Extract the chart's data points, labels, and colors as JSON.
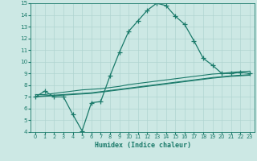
{
  "xlabel": "Humidex (Indice chaleur)",
  "x": [
    0,
    1,
    2,
    3,
    4,
    5,
    6,
    7,
    8,
    9,
    10,
    11,
    12,
    13,
    14,
    15,
    16,
    17,
    18,
    19,
    20,
    21,
    22,
    23
  ],
  "line_main": [
    7.0,
    7.5,
    7.0,
    7.0,
    5.5,
    4.1,
    6.5,
    6.6,
    8.8,
    10.8,
    12.6,
    13.5,
    14.4,
    15.0,
    14.8,
    13.9,
    13.2,
    11.8,
    10.3,
    9.7,
    9.0,
    9.0,
    9.1,
    9.0
  ],
  "line_avg1": [
    7.2,
    7.2,
    7.3,
    7.4,
    7.5,
    7.6,
    7.65,
    7.7,
    7.8,
    7.9,
    8.05,
    8.15,
    8.25,
    8.35,
    8.45,
    8.55,
    8.65,
    8.75,
    8.85,
    8.95,
    9.0,
    9.1,
    9.15,
    9.2
  ],
  "line_avg2": [
    7.05,
    7.1,
    7.15,
    7.2,
    7.25,
    7.3,
    7.35,
    7.45,
    7.55,
    7.65,
    7.75,
    7.85,
    7.95,
    8.05,
    8.15,
    8.25,
    8.35,
    8.45,
    8.55,
    8.65,
    8.72,
    8.8,
    8.85,
    8.9
  ],
  "line_avg3": [
    7.0,
    7.05,
    7.1,
    7.15,
    7.2,
    7.25,
    7.3,
    7.4,
    7.5,
    7.6,
    7.7,
    7.8,
    7.9,
    8.0,
    8.1,
    8.2,
    8.3,
    8.4,
    8.5,
    8.6,
    8.68,
    8.75,
    8.8,
    8.85
  ],
  "line_color": "#1a7a6a",
  "bg_color": "#cce8e4",
  "grid_color": "#b0d4d0",
  "ylim": [
    4,
    15
  ],
  "yticks": [
    4,
    5,
    6,
    7,
    8,
    9,
    10,
    11,
    12,
    13,
    14,
    15
  ],
  "xticks": [
    0,
    1,
    2,
    3,
    4,
    5,
    6,
    7,
    8,
    9,
    10,
    11,
    12,
    13,
    14,
    15,
    16,
    17,
    18,
    19,
    20,
    21,
    22,
    23
  ]
}
